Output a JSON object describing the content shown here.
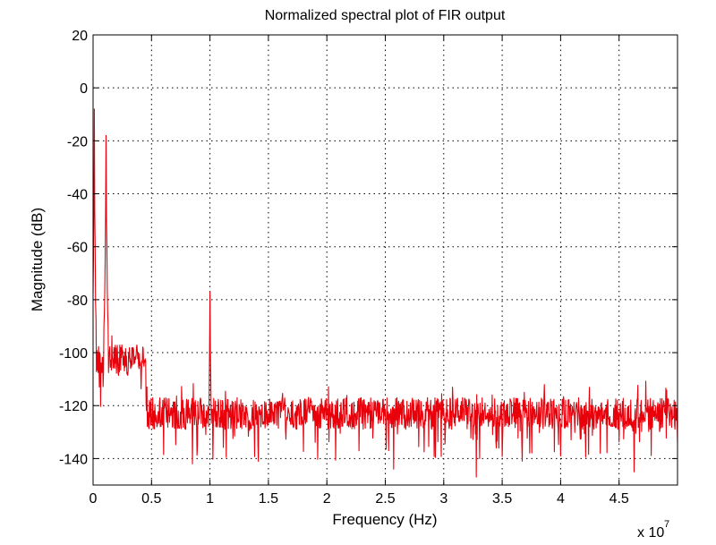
{
  "chart_data": {
    "type": "line",
    "title": "Normalized spectral plot of FIR output",
    "xlabel": "Frequency (Hz)",
    "ylabel": "Magnitude (dB)",
    "x_multiplier_label": "x 10",
    "x_multiplier_exponent": "7",
    "xlim": [
      0,
      5.0
    ],
    "ylim": [
      -150,
      20
    ],
    "x_ticks": [
      0,
      0.5,
      1,
      1.5,
      2,
      2.5,
      3,
      3.5,
      4,
      4.5
    ],
    "x_tick_labels": [
      "0",
      "0.5",
      "1",
      "1.5",
      "2",
      "2.5",
      "3",
      "3.5",
      "4",
      "4.5"
    ],
    "y_ticks": [
      20,
      0,
      -20,
      -40,
      -60,
      -80,
      -100,
      -120,
      -140
    ],
    "y_tick_labels": [
      "20",
      "0",
      "-20",
      "-40",
      "-60",
      "-80",
      "-100",
      "-120",
      "-140"
    ],
    "grid": true,
    "series": [
      {
        "color": "#e8000b",
        "features": {
          "peaks": [
            {
              "x": 0.01,
              "y": -8
            },
            {
              "x": 0.11,
              "y": -18
            },
            {
              "x": 1.0,
              "y": -77
            }
          ],
          "noise_floor_segments": [
            {
              "x_start": 0.0,
              "x_end": 0.45,
              "y_center": -103,
              "spread": 6
            },
            {
              "x_start": 0.45,
              "x_end": 5.0,
              "y_center": -123,
              "spread": 6
            }
          ],
          "deep_dips": [
            {
              "x": 0.85,
              "y": -142
            },
            {
              "x": 2.57,
              "y": -144
            },
            {
              "x": 3.28,
              "y": -147
            },
            {
              "x": 3.67,
              "y": -141
            },
            {
              "x": 4.63,
              "y": -145
            },
            {
              "x": 4.0,
              "y": -139
            }
          ]
        }
      }
    ]
  }
}
